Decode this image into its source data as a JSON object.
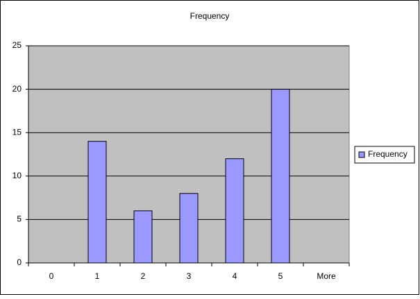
{
  "chart_data": {
    "type": "bar",
    "title": "Frequency",
    "categories": [
      "0",
      "1",
      "2",
      "3",
      "4",
      "5",
      "More"
    ],
    "series": [
      {
        "name": "Frequency",
        "color": "#9999ff",
        "values": [
          0,
          14,
          6,
          8,
          12,
          20,
          0
        ]
      }
    ],
    "ylim": [
      0,
      25
    ],
    "yticks": [
      0,
      5,
      10,
      15,
      20,
      25
    ],
    "grid": true,
    "legend": "right"
  }
}
